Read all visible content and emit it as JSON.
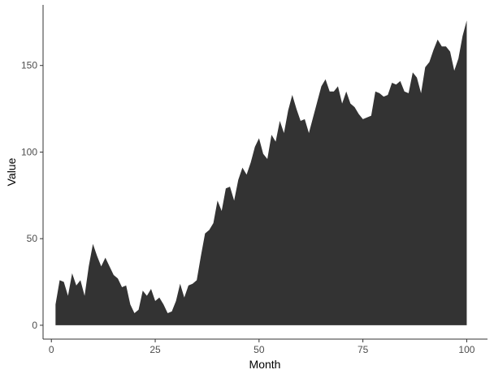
{
  "chart_data": {
    "type": "area",
    "xlabel": "Month",
    "ylabel": "Value",
    "xlim": [
      -2,
      105
    ],
    "ylim": [
      -8,
      185
    ],
    "x_ticks": [
      0,
      25,
      50,
      75,
      100
    ],
    "y_ticks": [
      0,
      50,
      100,
      150
    ],
    "grid": false,
    "fill_color": "#333333",
    "axis_color": "#333333",
    "series": [
      {
        "x": [
          1,
          2,
          3,
          4,
          5,
          6,
          7,
          8,
          9,
          10,
          11,
          12,
          13,
          14,
          15,
          16,
          17,
          18,
          19,
          20,
          21,
          22,
          23,
          24,
          25,
          26,
          27,
          28,
          29,
          30,
          31,
          32,
          33,
          34,
          35,
          36,
          37,
          38,
          39,
          40,
          41,
          42,
          43,
          44,
          45,
          46,
          47,
          48,
          49,
          50,
          51,
          52,
          53,
          54,
          55,
          56,
          57,
          58,
          59,
          60,
          61,
          62,
          63,
          64,
          65,
          66,
          67,
          68,
          69,
          70,
          71,
          72,
          73,
          74,
          75,
          76,
          77,
          78,
          79,
          80,
          81,
          82,
          83,
          84,
          85,
          86,
          87,
          88,
          89,
          90,
          91,
          92,
          93,
          94,
          95,
          96,
          97,
          98,
          99,
          100
        ],
        "values": [
          12,
          26,
          25,
          17,
          30,
          23,
          26,
          17,
          34,
          47,
          40,
          34,
          39,
          34,
          29,
          27,
          22,
          23,
          12,
          7,
          9,
          20,
          17,
          21,
          14,
          16,
          12,
          7,
          8,
          14,
          24,
          16,
          23,
          24,
          26,
          40,
          53,
          55,
          59,
          72,
          66,
          79,
          80,
          72,
          84,
          91,
          87,
          94,
          103,
          108,
          99,
          96,
          110,
          106,
          118,
          111,
          124,
          133,
          125,
          118,
          119,
          111,
          120,
          129,
          138,
          142,
          135,
          135,
          138,
          128,
          135,
          128,
          126,
          122,
          119,
          120,
          121,
          135,
          134,
          132,
          133,
          140,
          139,
          141,
          135,
          134,
          146,
          143,
          134,
          149,
          152,
          159,
          165,
          161,
          161,
          158,
          147,
          154,
          167,
          176
        ]
      }
    ]
  }
}
